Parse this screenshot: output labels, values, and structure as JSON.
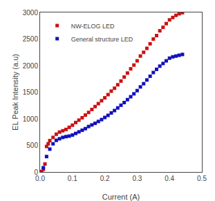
{
  "chart_data": {
    "type": "scatter",
    "xlabel": "Current (A)",
    "ylabel": "EL Peak Intensity (a.u)",
    "xlim": [
      0,
      0.5
    ],
    "ylim": [
      0,
      3000
    ],
    "xticks": [
      {
        "value": 0,
        "label": "0.0"
      },
      0.1,
      0.2,
      0.3,
      0.4,
      0.5
    ],
    "yticks": [
      0,
      500,
      1000,
      1500,
      2000,
      2500,
      3000
    ],
    "grid": false,
    "legend": "upper left",
    "series": [
      {
        "name": "NW-ELOG LED",
        "color": "#CC1111",
        "marker": "square",
        "x": [
          0.005,
          0.01,
          0.015,
          0.02,
          0.025,
          0.03,
          0.04,
          0.05,
          0.06,
          0.07,
          0.08,
          0.09,
          0.1,
          0.11,
          0.12,
          0.13,
          0.14,
          0.15,
          0.16,
          0.17,
          0.18,
          0.19,
          0.2,
          0.21,
          0.22,
          0.23,
          0.24,
          0.25,
          0.26,
          0.27,
          0.28,
          0.29,
          0.3,
          0.31,
          0.32,
          0.33,
          0.34,
          0.35,
          0.36,
          0.37,
          0.38,
          0.39,
          0.4,
          0.41,
          0.42,
          0.43,
          0.44
        ],
        "values": [
          10,
          50,
          150,
          480,
          530,
          590,
          650,
          710,
          750,
          775,
          800,
          840,
          880,
          930,
          975,
          1020,
          1070,
          1120,
          1175,
          1230,
          1285,
          1340,
          1395,
          1455,
          1520,
          1575,
          1640,
          1710,
          1785,
          1860,
          1940,
          2010,
          2090,
          2180,
          2250,
          2325,
          2410,
          2500,
          2565,
          2655,
          2720,
          2790,
          2860,
          2905,
          2945,
          2975,
          2995
        ]
      },
      {
        "name": "General structure LED",
        "color": "#1111BB",
        "marker": "square",
        "x": [
          0.01,
          0.02,
          0.03,
          0.04,
          0.05,
          0.06,
          0.07,
          0.08,
          0.09,
          0.1,
          0.11,
          0.12,
          0.13,
          0.14,
          0.15,
          0.16,
          0.17,
          0.18,
          0.19,
          0.2,
          0.21,
          0.22,
          0.23,
          0.24,
          0.25,
          0.26,
          0.27,
          0.28,
          0.29,
          0.3,
          0.31,
          0.32,
          0.33,
          0.34,
          0.35,
          0.36,
          0.37,
          0.38,
          0.39,
          0.4,
          0.41,
          0.42,
          0.43,
          0.44
        ],
        "values": [
          80,
          290,
          430,
          530,
          595,
          625,
          650,
          665,
          675,
          695,
          725,
          755,
          785,
          815,
          855,
          885,
          915,
          950,
          985,
          1025,
          1065,
          1110,
          1155,
          1205,
          1255,
          1305,
          1360,
          1415,
          1470,
          1530,
          1600,
          1660,
          1730,
          1800,
          1870,
          1930,
          1990,
          2040,
          2090,
          2140,
          2165,
          2180,
          2195,
          2210
        ]
      }
    ]
  }
}
